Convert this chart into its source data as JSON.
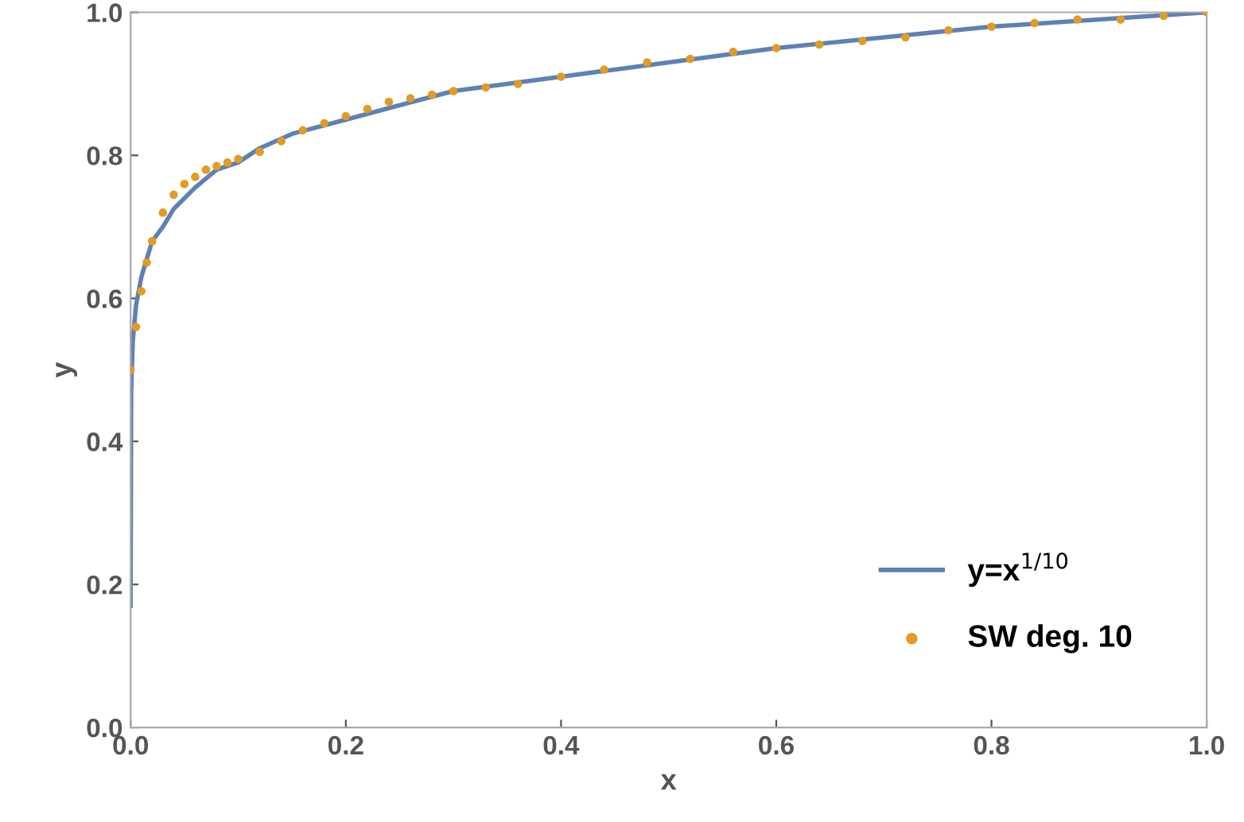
{
  "chart_data": {
    "type": "line",
    "xlabel": "x",
    "ylabel": "y",
    "xlim": [
      0,
      1
    ],
    "ylim": [
      0,
      1
    ],
    "xticks": [
      {
        "value": 0,
        "label": "0.0"
      },
      0.2,
      0.4,
      0.6,
      0.8,
      {
        "value": 1,
        "label": "1.0"
      }
    ],
    "yticks": [
      {
        "value": 0,
        "label": "0.0"
      },
      0.2,
      0.4,
      0.6,
      0.8,
      {
        "value": 1,
        "label": "1.0"
      }
    ],
    "grid": false,
    "legend": "bottom right",
    "series": [
      {
        "name": "y=x$^{1/10}$",
        "color": "#5e81b5",
        "x": [
          0,
          0.0005,
          0.002,
          0.005,
          0.01,
          0.02,
          0.03,
          0.04,
          0.05,
          0.06,
          0.08,
          0.1,
          0.12,
          0.15,
          0.2,
          0.3,
          0.4,
          0.5,
          0.6,
          0.7,
          0.8,
          0.9,
          1.0
        ],
        "values": [
          0.17,
          0.47,
          0.54,
          0.59,
          0.63,
          0.68,
          0.7,
          0.725,
          0.74,
          0.755,
          0.78,
          0.79,
          0.81,
          0.83,
          0.85,
          0.89,
          0.91,
          0.93,
          0.95,
          0.965,
          0.98,
          0.99,
          1.0
        ]
      },
      {
        "name": "SW deg. 10",
        "type": "scatter",
        "color": "#e19c24",
        "x": [
          0,
          0.005,
          0.01,
          0.015,
          0.02,
          0.03,
          0.04,
          0.05,
          0.06,
          0.07,
          0.08,
          0.09,
          0.1,
          0.12,
          0.14,
          0.16,
          0.18,
          0.2,
          0.22,
          0.24,
          0.26,
          0.28,
          0.3,
          0.33,
          0.36,
          0.4,
          0.44,
          0.48,
          0.52,
          0.56,
          0.6,
          0.64,
          0.68,
          0.72,
          0.76,
          0.8,
          0.84,
          0.88,
          0.92,
          0.96,
          1.0
        ],
        "values": [
          0.5,
          0.56,
          0.61,
          0.65,
          0.68,
          0.72,
          0.745,
          0.76,
          0.77,
          0.78,
          0.785,
          0.79,
          0.795,
          0.805,
          0.82,
          0.835,
          0.845,
          0.855,
          0.865,
          0.875,
          0.88,
          0.885,
          0.89,
          0.895,
          0.9,
          0.91,
          0.92,
          0.93,
          0.935,
          0.945,
          0.95,
          0.955,
          0.96,
          0.965,
          0.975,
          0.98,
          0.985,
          0.99,
          0.99,
          0.995,
          1.0
        ]
      }
    ]
  }
}
